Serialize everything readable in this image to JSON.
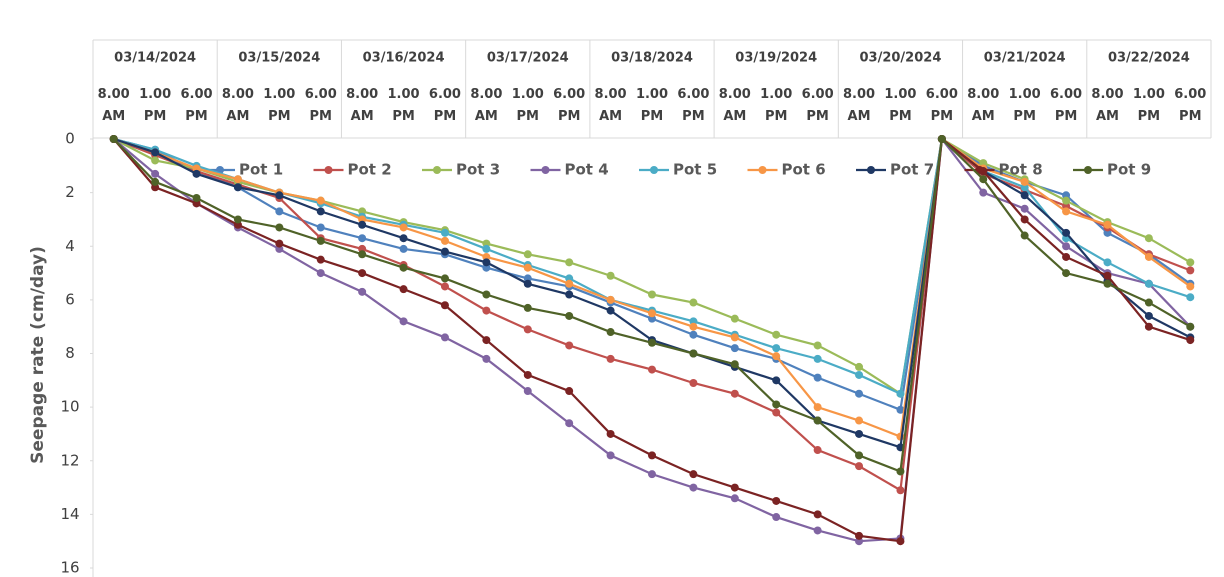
{
  "chart_data": {
    "type": "line",
    "y_axis_label": "Seepage rate (cm/day)",
    "dates": [
      "03/14/2024",
      "03/15/2024",
      "03/16/2024",
      "03/17/2024",
      "03/18/2024",
      "03/19/2024",
      "03/20/2024",
      "03/21/2024",
      "03/22/2024"
    ],
    "categories": [
      "8.00 AM",
      "1.00 PM",
      "6.00 PM",
      "8.00 AM",
      "1.00 PM",
      "6.00 PM",
      "8.00 AM",
      "1.00 PM",
      "6.00 PM",
      "8.00 AM",
      "1.00 PM",
      "6.00 PM",
      "8.00 AM",
      "1.00 PM",
      "6.00 PM",
      "8.00 AM",
      "1.00 PM",
      "6.00 PM",
      "8.00 AM",
      "1.00 PM",
      "6.00 PM",
      "8.00 AM",
      "1.00 PM",
      "6.00 PM",
      "8.00 AM",
      "1.00 PM",
      "6.00 PM"
    ],
    "ylim": [
      0,
      16
    ],
    "y_inverted": true,
    "yticks": [
      0,
      2,
      4,
      6,
      8,
      10,
      12,
      14,
      16
    ],
    "legend_position": "top",
    "series": [
      {
        "name": "Pot 1",
        "color": "#4f81bd",
        "values": [
          0,
          0.4,
          1.2,
          1.8,
          2.7,
          3.3,
          3.7,
          4.1,
          4.3,
          4.8,
          5.2,
          5.5,
          6.1,
          6.7,
          7.3,
          7.8,
          8.2,
          8.9,
          9.5,
          10.1,
          0,
          1.0,
          1.6,
          2.1,
          3.5,
          4.3,
          5.4
        ]
      },
      {
        "name": "Pot 2",
        "color": "#c0504d",
        "values": [
          0,
          0.6,
          1.2,
          1.7,
          2.2,
          3.7,
          4.1,
          4.7,
          5.5,
          6.4,
          7.1,
          7.7,
          8.2,
          8.6,
          9.1,
          9.5,
          10.2,
          11.6,
          12.2,
          13.1,
          0,
          1.3,
          1.9,
          2.5,
          3.3,
          4.3,
          4.9
        ]
      },
      {
        "name": "Pot 3",
        "color": "#9bbb59",
        "values": [
          0,
          0.8,
          1.1,
          1.6,
          2.0,
          2.3,
          2.7,
          3.1,
          3.4,
          3.9,
          4.3,
          4.6,
          5.1,
          5.8,
          6.1,
          6.7,
          7.3,
          7.7,
          8.5,
          9.5,
          0,
          0.9,
          1.5,
          2.3,
          3.1,
          3.7,
          4.6
        ]
      },
      {
        "name": "Pot 4",
        "color": "#8064a2",
        "values": [
          0,
          1.3,
          2.4,
          3.3,
          4.1,
          5.0,
          5.7,
          6.8,
          7.4,
          8.2,
          9.4,
          10.6,
          11.8,
          12.5,
          13.0,
          13.4,
          14.1,
          14.6,
          15.0,
          14.9,
          0,
          2.0,
          2.6,
          4.0,
          5.0,
          5.4,
          7.0
        ]
      },
      {
        "name": "Pot 5",
        "color": "#4bacc6",
        "values": [
          0,
          0.4,
          1.0,
          1.5,
          2.0,
          2.4,
          2.9,
          3.2,
          3.5,
          4.1,
          4.7,
          5.2,
          6.0,
          6.4,
          6.8,
          7.3,
          7.8,
          8.2,
          8.8,
          9.5,
          0,
          1.2,
          1.8,
          3.7,
          4.6,
          5.4,
          5.9
        ]
      },
      {
        "name": "Pot 6",
        "color": "#f79646",
        "values": [
          0,
          0.5,
          1.1,
          1.5,
          2.0,
          2.3,
          3.0,
          3.3,
          3.8,
          4.4,
          4.8,
          5.4,
          6.0,
          6.5,
          7.0,
          7.4,
          8.1,
          10.0,
          10.5,
          11.1,
          0,
          1.1,
          1.6,
          2.7,
          3.2,
          4.4,
          5.5
        ]
      },
      {
        "name": "Pot 7",
        "color": "#1f3864",
        "values": [
          0,
          0.5,
          1.3,
          1.8,
          2.1,
          2.7,
          3.2,
          3.7,
          4.2,
          4.6,
          5.4,
          5.8,
          6.4,
          7.5,
          8.0,
          8.5,
          9.0,
          10.5,
          11.0,
          11.5,
          0,
          1.2,
          2.1,
          3.5,
          5.3,
          6.6,
          7.4
        ]
      },
      {
        "name": "Pot 8",
        "color": "#7b2323",
        "values": [
          0,
          1.8,
          2.4,
          3.2,
          3.9,
          4.5,
          5.0,
          5.6,
          6.2,
          7.5,
          8.8,
          9.4,
          11.0,
          11.8,
          12.5,
          13.0,
          13.5,
          14.0,
          14.8,
          15.0,
          0,
          1.2,
          3.0,
          4.4,
          5.1,
          7.0,
          7.5
        ]
      },
      {
        "name": "Pot 9",
        "color": "#4f6228",
        "values": [
          0,
          1.6,
          2.2,
          3.0,
          3.3,
          3.8,
          4.3,
          4.8,
          5.2,
          5.8,
          6.3,
          6.6,
          7.2,
          7.6,
          8.0,
          8.4,
          9.9,
          10.5,
          11.8,
          12.4,
          0,
          1.5,
          3.6,
          5.0,
          5.4,
          6.1,
          7.0
        ]
      }
    ]
  }
}
